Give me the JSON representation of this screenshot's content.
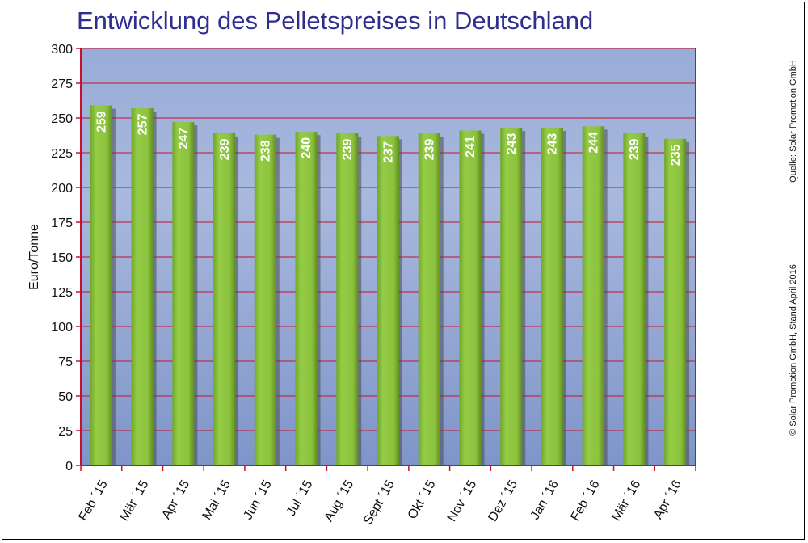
{
  "title": "Entwicklung des Pelletspreises in Deutschland",
  "source_note": "Quelle: Solar Promotion GmbH",
  "copyright_note": "© Solar Promotion GmbH, Stand April 2016",
  "colors": {
    "plot_bg": "#8fa4d4",
    "bar_fill": "#8dc63f",
    "bar_dark": "#5f8f1f",
    "grid_line": "#c8102e",
    "axis_line": "#c8102e",
    "title_color": "#2e2e8f"
  },
  "chart_data": {
    "type": "bar",
    "title": "Entwicklung des Pelletspreises in Deutschland",
    "xlabel": "",
    "ylabel": "Euro/Tonne",
    "ylim": [
      0,
      300
    ],
    "yticks": [
      0,
      25,
      50,
      75,
      100,
      125,
      150,
      175,
      200,
      225,
      250,
      275,
      300
    ],
    "grid": true,
    "categories": [
      "Feb ´15",
      "Mär ´15",
      "Apr ´15",
      "Mai ´15",
      "Jun ´15",
      "Jul ´15",
      "Aug ´15",
      "Sept ´15",
      "Okt ´15",
      "Nov ´15",
      "Dez ´15",
      "Jan ´16",
      "Feb ´16",
      "Mär ´16",
      "Apr ´16"
    ],
    "values": [
      259,
      257,
      247,
      239,
      238,
      240,
      239,
      237,
      239,
      241,
      243,
      243,
      244,
      239,
      235
    ]
  }
}
